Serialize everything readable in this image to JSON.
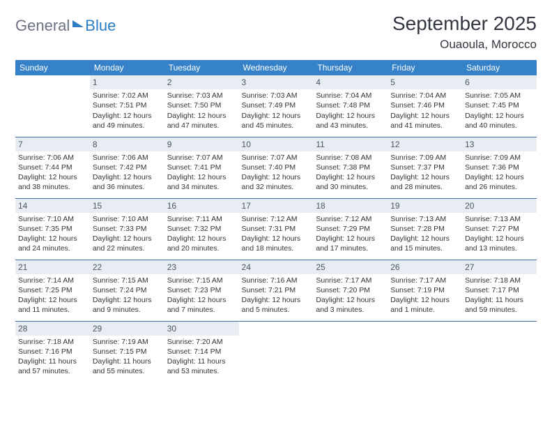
{
  "logo": {
    "text1": "General",
    "text2": "Blue"
  },
  "title": "September 2025",
  "location": "Ouaoula, Morocco",
  "colors": {
    "header_bg": "#3682c9",
    "header_text": "#ffffff",
    "daynum_bg": "#e7edf3",
    "daynum_text": "#4a5568",
    "border": "#3b6fa0",
    "logo_gray": "#6b7280",
    "logo_blue": "#2d7dc4",
    "title_color": "#333740"
  },
  "weekdays": [
    "Sunday",
    "Monday",
    "Tuesday",
    "Wednesday",
    "Thursday",
    "Friday",
    "Saturday"
  ],
  "weeks": [
    [
      null,
      {
        "d": "1",
        "sr": "7:02 AM",
        "ss": "7:51 PM",
        "dl": "12 hours and 49 minutes."
      },
      {
        "d": "2",
        "sr": "7:03 AM",
        "ss": "7:50 PM",
        "dl": "12 hours and 47 minutes."
      },
      {
        "d": "3",
        "sr": "7:03 AM",
        "ss": "7:49 PM",
        "dl": "12 hours and 45 minutes."
      },
      {
        "d": "4",
        "sr": "7:04 AM",
        "ss": "7:48 PM",
        "dl": "12 hours and 43 minutes."
      },
      {
        "d": "5",
        "sr": "7:04 AM",
        "ss": "7:46 PM",
        "dl": "12 hours and 41 minutes."
      },
      {
        "d": "6",
        "sr": "7:05 AM",
        "ss": "7:45 PM",
        "dl": "12 hours and 40 minutes."
      }
    ],
    [
      {
        "d": "7",
        "sr": "7:06 AM",
        "ss": "7:44 PM",
        "dl": "12 hours and 38 minutes."
      },
      {
        "d": "8",
        "sr": "7:06 AM",
        "ss": "7:42 PM",
        "dl": "12 hours and 36 minutes."
      },
      {
        "d": "9",
        "sr": "7:07 AM",
        "ss": "7:41 PM",
        "dl": "12 hours and 34 minutes."
      },
      {
        "d": "10",
        "sr": "7:07 AM",
        "ss": "7:40 PM",
        "dl": "12 hours and 32 minutes."
      },
      {
        "d": "11",
        "sr": "7:08 AM",
        "ss": "7:38 PM",
        "dl": "12 hours and 30 minutes."
      },
      {
        "d": "12",
        "sr": "7:09 AM",
        "ss": "7:37 PM",
        "dl": "12 hours and 28 minutes."
      },
      {
        "d": "13",
        "sr": "7:09 AM",
        "ss": "7:36 PM",
        "dl": "12 hours and 26 minutes."
      }
    ],
    [
      {
        "d": "14",
        "sr": "7:10 AM",
        "ss": "7:35 PM",
        "dl": "12 hours and 24 minutes."
      },
      {
        "d": "15",
        "sr": "7:10 AM",
        "ss": "7:33 PM",
        "dl": "12 hours and 22 minutes."
      },
      {
        "d": "16",
        "sr": "7:11 AM",
        "ss": "7:32 PM",
        "dl": "12 hours and 20 minutes."
      },
      {
        "d": "17",
        "sr": "7:12 AM",
        "ss": "7:31 PM",
        "dl": "12 hours and 18 minutes."
      },
      {
        "d": "18",
        "sr": "7:12 AM",
        "ss": "7:29 PM",
        "dl": "12 hours and 17 minutes."
      },
      {
        "d": "19",
        "sr": "7:13 AM",
        "ss": "7:28 PM",
        "dl": "12 hours and 15 minutes."
      },
      {
        "d": "20",
        "sr": "7:13 AM",
        "ss": "7:27 PM",
        "dl": "12 hours and 13 minutes."
      }
    ],
    [
      {
        "d": "21",
        "sr": "7:14 AM",
        "ss": "7:25 PM",
        "dl": "12 hours and 11 minutes."
      },
      {
        "d": "22",
        "sr": "7:15 AM",
        "ss": "7:24 PM",
        "dl": "12 hours and 9 minutes."
      },
      {
        "d": "23",
        "sr": "7:15 AM",
        "ss": "7:23 PM",
        "dl": "12 hours and 7 minutes."
      },
      {
        "d": "24",
        "sr": "7:16 AM",
        "ss": "7:21 PM",
        "dl": "12 hours and 5 minutes."
      },
      {
        "d": "25",
        "sr": "7:17 AM",
        "ss": "7:20 PM",
        "dl": "12 hours and 3 minutes."
      },
      {
        "d": "26",
        "sr": "7:17 AM",
        "ss": "7:19 PM",
        "dl": "12 hours and 1 minute."
      },
      {
        "d": "27",
        "sr": "7:18 AM",
        "ss": "7:17 PM",
        "dl": "11 hours and 59 minutes."
      }
    ],
    [
      {
        "d": "28",
        "sr": "7:18 AM",
        "ss": "7:16 PM",
        "dl": "11 hours and 57 minutes."
      },
      {
        "d": "29",
        "sr": "7:19 AM",
        "ss": "7:15 PM",
        "dl": "11 hours and 55 minutes."
      },
      {
        "d": "30",
        "sr": "7:20 AM",
        "ss": "7:14 PM",
        "dl": "11 hours and 53 minutes."
      },
      null,
      null,
      null,
      null
    ]
  ],
  "labels": {
    "sunrise": "Sunrise:",
    "sunset": "Sunset:",
    "daylight": "Daylight:"
  }
}
